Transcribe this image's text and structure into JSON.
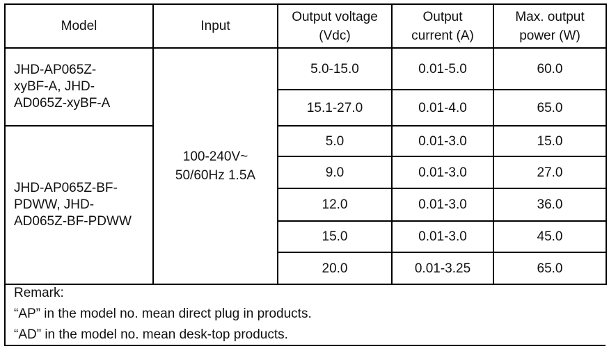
{
  "headers": [
    "Model",
    "Input",
    "Output voltage (Vdc)",
    "Output current (A)",
    "Max. output power (W)"
  ],
  "input": "100-240V~ 50/60Hz 1.5A",
  "groups": [
    {
      "model": "JHD-AP065Z-xyBF-A, JHD-AD065Z-xyBF-A",
      "rows": [
        {
          "voltage": "5.0-15.0",
          "current": "0.01-5.0",
          "power": "60.0"
        },
        {
          "voltage": "15.1-27.0",
          "current": "0.01-4.0",
          "power": "65.0"
        }
      ]
    },
    {
      "model": "JHD-AP065Z-BF-PDWW, JHD-AD065Z-BF-PDWW",
      "rows": [
        {
          "voltage": "5.0",
          "current": "0.01-3.0",
          "power": "15.0"
        },
        {
          "voltage": "9.0",
          "current": "0.01-3.0",
          "power": "27.0"
        },
        {
          "voltage": "12.0",
          "current": "0.01-3.0",
          "power": "36.0"
        },
        {
          "voltage": "15.0",
          "current": "0.01-3.0",
          "power": "45.0"
        },
        {
          "voltage": "20.0",
          "current": "0.01-3.25",
          "power": "65.0"
        }
      ]
    }
  ],
  "remark": {
    "title": "Remark:",
    "lines": [
      "“AP” in the model no. mean direct plug in products.",
      "“AD” in the model no. mean desk-top products."
    ]
  }
}
